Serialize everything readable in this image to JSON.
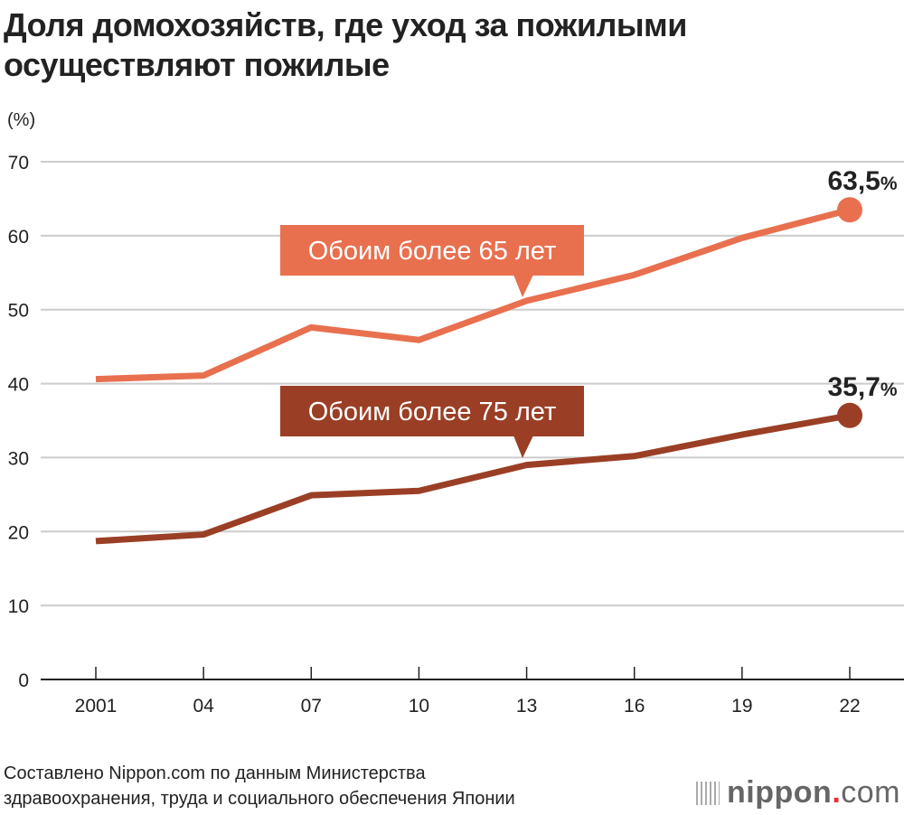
{
  "title_line1": "Доля домохозяйств, где уход за пожилыми",
  "title_line2": "осуществляют пожилые",
  "source_line1": "Составлено Nippon.com по данным Министерства",
  "source_line2": "здравоохранения, труда и социального обеспечения Японии",
  "logo": {
    "main": "nippon",
    "dot": ".",
    "suffix": "com"
  },
  "chart_data": {
    "type": "line",
    "title": "Доля домохозяйств, где уход за пожилыми осуществляют пожилые",
    "ylabel": "(%)",
    "ylim": [
      0,
      70
    ],
    "yticks": [
      0,
      10,
      20,
      30,
      40,
      50,
      60,
      70
    ],
    "categories": [
      "2001",
      "04",
      "07",
      "10",
      "13",
      "16",
      "19",
      "22"
    ],
    "grid": true,
    "series": [
      {
        "name": "Обоим более 65 лет",
        "color": "#e8704f",
        "values": [
          40.6,
          41.1,
          47.6,
          45.9,
          51.2,
          54.7,
          59.7,
          63.5
        ],
        "end_label": "63,5",
        "end_unit": "%"
      },
      {
        "name": "Обоим более 75 лет",
        "color": "#9a3f25",
        "values": [
          18.7,
          19.6,
          24.9,
          25.5,
          29.0,
          30.2,
          33.1,
          35.7
        ],
        "end_label": "35,7",
        "end_unit": "%"
      }
    ]
  }
}
